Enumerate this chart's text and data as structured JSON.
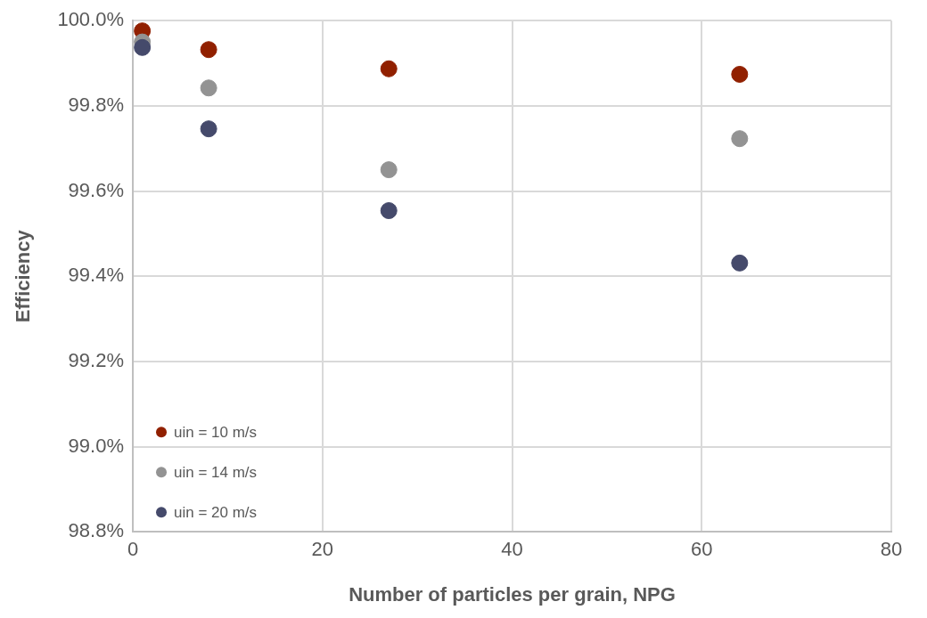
{
  "chart_data": {
    "type": "scatter",
    "xlabel": "Number of particles per grain, NPG",
    "ylabel": "Efficiency",
    "x": [
      1,
      8,
      27,
      64
    ],
    "series": [
      {
        "name": "uin = 10 m/s",
        "color": "#912000",
        "values": [
          99.976,
          99.932,
          99.887,
          99.874
        ]
      },
      {
        "name": "uin = 14 m/s",
        "color": "#939393",
        "values": [
          99.95,
          99.842,
          99.65,
          99.723
        ]
      },
      {
        "name": "uin = 20 m/s",
        "color": "#454a6b",
        "values": [
          99.937,
          99.746,
          99.554,
          99.431
        ]
      }
    ],
    "xlim": [
      0,
      80
    ],
    "xticks": [
      0,
      20,
      40,
      60,
      80
    ],
    "ylim": [
      98.8,
      100
    ],
    "yticks": [
      {
        "value": 98.8,
        "label": "98.8%"
      },
      {
        "value": 99,
        "label": "99.0%"
      },
      {
        "value": 99.2,
        "label": "99.2%"
      },
      {
        "value": 99.4,
        "label": "99.4%"
      },
      {
        "value": 99.6,
        "label": "99.6%"
      },
      {
        "value": 99.8,
        "label": "99.8%"
      },
      {
        "value": 100,
        "label": "100.0%"
      }
    ],
    "grid": true,
    "legend": "bottom left",
    "marker": "circle"
  }
}
